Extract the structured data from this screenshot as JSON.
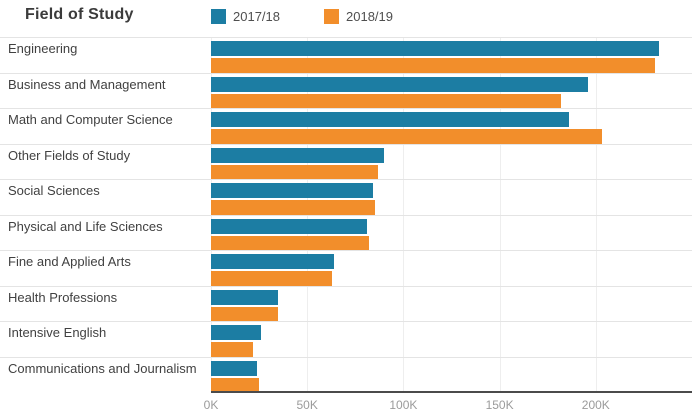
{
  "title": "Field of Study",
  "colors": {
    "series_2017_18": "#1C7DA3",
    "series_2018_19": "#F28E2B",
    "axis_line": "#4b4b4b",
    "row_separator": "#e4e4e4",
    "gridline": "#eeeeee",
    "title_text": "#3b3b3b",
    "category_text": "#414141",
    "tick_text": "#9b9b9b"
  },
  "chart_data": {
    "type": "bar",
    "orientation": "horizontal",
    "title": "Field of Study",
    "xlabel": "",
    "ylabel": "Field of Study",
    "xlim": [
      0,
      250000
    ],
    "grid": true,
    "legend_position": "top",
    "categories": [
      "Engineering",
      "Business and Management",
      "Math and Computer Science",
      "Other Fields of Study",
      "Social Sciences",
      "Physical and Life Sciences",
      "Fine and Applied Arts",
      "Health Professions",
      "Intensive English",
      "Communications and Journalism"
    ],
    "series": [
      {
        "name": "2017/18",
        "color": "#1C7DA3",
        "values": [
          233000,
          196000,
          186000,
          90000,
          84000,
          81000,
          64000,
          35000,
          26000,
          24000
        ]
      },
      {
        "name": "2018/19",
        "color": "#F28E2B",
        "values": [
          231000,
          182000,
          203000,
          87000,
          85000,
          82000,
          63000,
          35000,
          22000,
          25000
        ]
      }
    ],
    "x_ticks": [
      {
        "label": "0K",
        "value": 0
      },
      {
        "label": "50K",
        "value": 50000
      },
      {
        "label": "100K",
        "value": 100000
      },
      {
        "label": "150K",
        "value": 150000
      },
      {
        "label": "200K",
        "value": 200000
      }
    ]
  }
}
